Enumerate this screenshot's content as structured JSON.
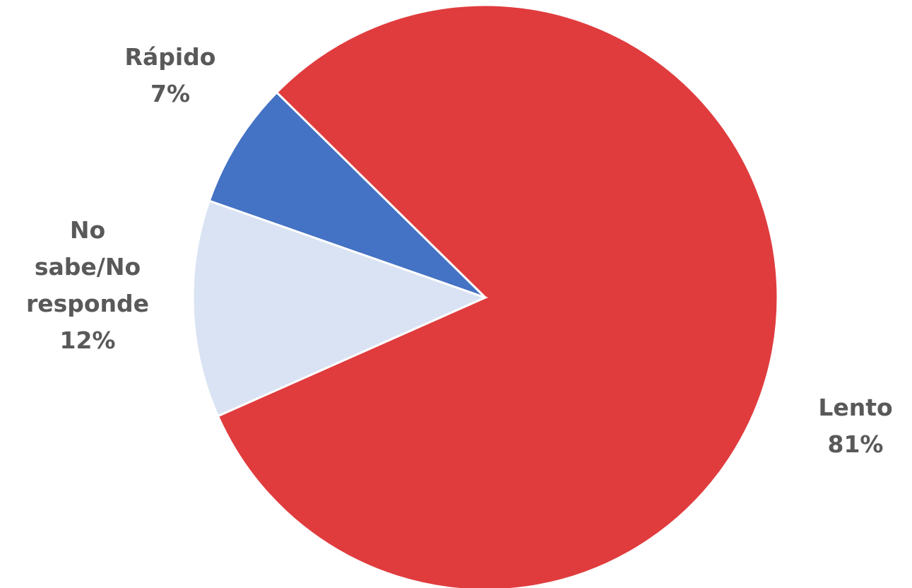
{
  "chart_data": {
    "type": "pie",
    "title": "",
    "slices": [
      {
        "label": "Lento",
        "value": 81,
        "display": "81%",
        "color": "#E03C3E"
      },
      {
        "label": "No sabe/No responde",
        "value": 12,
        "display": "12%",
        "color": "#DAE3F3"
      },
      {
        "label": "Rápido",
        "value": 7,
        "display": "7%",
        "color": "#4472C4"
      }
    ]
  }
}
